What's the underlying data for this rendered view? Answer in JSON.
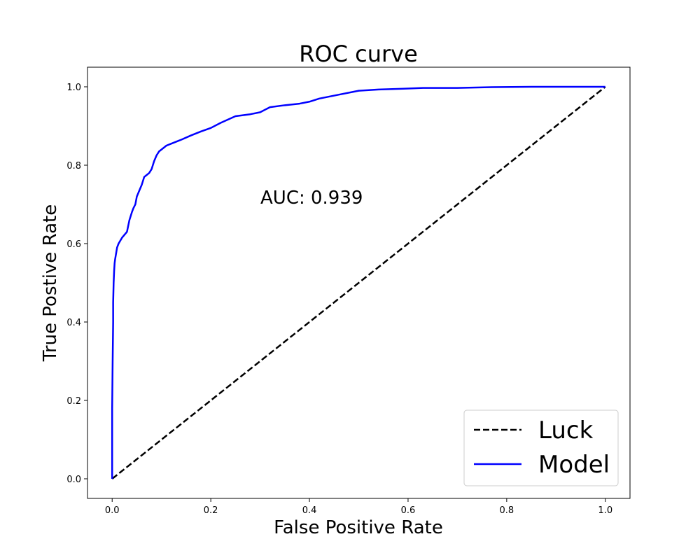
{
  "chart_data": {
    "type": "line",
    "title": "ROC curve",
    "xlabel": "False Positive Rate",
    "ylabel": "True Postive Rate",
    "xlim": [
      -0.05,
      1.05
    ],
    "ylim": [
      -0.05,
      1.05
    ],
    "xticks": [
      "0.0",
      "0.2",
      "0.4",
      "0.6",
      "0.8",
      "1.0"
    ],
    "yticks": [
      "0.0",
      "0.2",
      "0.4",
      "0.6",
      "0.8",
      "1.0"
    ],
    "grid": false,
    "legend_position": "lower-right",
    "annotation": "AUC: 0.939",
    "series": [
      {
        "name": "Luck",
        "color": "#000000",
        "style": "dashed",
        "x": [
          0.0,
          1.0
        ],
        "y": [
          0.0,
          1.0
        ]
      },
      {
        "name": "Model",
        "color": "#0000ff",
        "style": "solid",
        "x": [
          0.0,
          0.0,
          0.001,
          0.002,
          0.002,
          0.003,
          0.004,
          0.005,
          0.006,
          0.008,
          0.01,
          0.013,
          0.02,
          0.03,
          0.035,
          0.04,
          0.043,
          0.047,
          0.05,
          0.055,
          0.06,
          0.065,
          0.068,
          0.07,
          0.075,
          0.08,
          0.085,
          0.09,
          0.095,
          0.1,
          0.11,
          0.12,
          0.14,
          0.16,
          0.18,
          0.2,
          0.22,
          0.25,
          0.28,
          0.3,
          0.32,
          0.35,
          0.38,
          0.4,
          0.42,
          0.46,
          0.5,
          0.54,
          0.59,
          0.63,
          0.7,
          0.77,
          0.85,
          0.92,
          1.0
        ],
        "y": [
          0.0,
          0.18,
          0.3,
          0.4,
          0.45,
          0.5,
          0.53,
          0.55,
          0.56,
          0.575,
          0.59,
          0.6,
          0.615,
          0.63,
          0.66,
          0.68,
          0.69,
          0.7,
          0.72,
          0.735,
          0.75,
          0.77,
          0.773,
          0.775,
          0.78,
          0.79,
          0.81,
          0.825,
          0.835,
          0.84,
          0.85,
          0.855,
          0.865,
          0.876,
          0.886,
          0.895,
          0.908,
          0.925,
          0.93,
          0.935,
          0.948,
          0.953,
          0.957,
          0.962,
          0.97,
          0.98,
          0.99,
          0.993,
          0.995,
          0.997,
          0.997,
          0.999,
          1.0,
          1.0,
          1.0
        ]
      }
    ]
  }
}
